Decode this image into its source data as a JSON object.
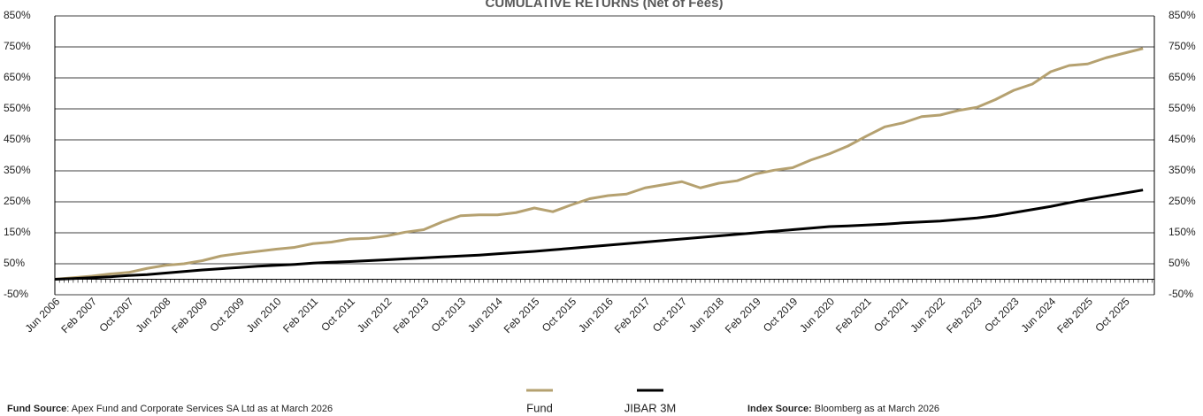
{
  "chart_data": {
    "type": "line",
    "title": "CUMULATIVE RETURNS (Net of Fees)",
    "categories": [
      "Jun 2006",
      null,
      "Feb 2007",
      null,
      "Oct 2007",
      null,
      "Jun 2008",
      null,
      "Feb 2009",
      null,
      "Oct 2009",
      null,
      "Jun 2010",
      null,
      "Feb 2011",
      null,
      "Oct 2011",
      null,
      "Jun 2012",
      null,
      "Feb 2013",
      null,
      "Oct 2013",
      null,
      "Jun 2014",
      null,
      "Feb 2015",
      null,
      "Oct 2015",
      null,
      "Jun 2016",
      null,
      "Feb 2017",
      null,
      "Oct 2017",
      null,
      "Jun 2018",
      null,
      "Feb 2019",
      null,
      "Oct 2019",
      null,
      "Jun 2020",
      null,
      "Feb 2021",
      null,
      "Oct 2021",
      null,
      "Jun 2022",
      null,
      "Feb 2023",
      null,
      "Oct 2023",
      null,
      "Jun 2024",
      null,
      "Feb 2025",
      null,
      "Oct 2025",
      null
    ],
    "series": [
      {
        "name": "Fund",
        "color": "#b5a170",
        "values": [
          0,
          5,
          10,
          17,
          22,
          35,
          45,
          50,
          60,
          75,
          83,
          90,
          97,
          103,
          115,
          120,
          130,
          132,
          140,
          152,
          160,
          185,
          205,
          208,
          208,
          215,
          230,
          218,
          240,
          260,
          270,
          275,
          295,
          305,
          315,
          295,
          310,
          318,
          340,
          352,
          360,
          385,
          405,
          430,
          462,
          492,
          505,
          525,
          530,
          545,
          555,
          580,
          610,
          630,
          670,
          690,
          695,
          715,
          730,
          745
        ]
      },
      {
        "name": "JIBAR 3M",
        "color": "#000000",
        "values": [
          0,
          2,
          5,
          8,
          12,
          15,
          20,
          25,
          30,
          34,
          38,
          42,
          45,
          48,
          52,
          55,
          57,
          60,
          63,
          66,
          69,
          72,
          75,
          78,
          82,
          86,
          90,
          95,
          100,
          105,
          110,
          115,
          120,
          125,
          130,
          135,
          140,
          145,
          150,
          155,
          160,
          165,
          170,
          172,
          175,
          178,
          182,
          185,
          188,
          193,
          198,
          205,
          215,
          225,
          235,
          247,
          258,
          268,
          278,
          288
        ]
      }
    ],
    "ylim": [
      -50,
      850
    ],
    "yticks": [
      {
        "value": -50,
        "label": "-50%"
      },
      {
        "value": 50,
        "label": "50%"
      },
      {
        "value": 150,
        "label": "150%"
      },
      {
        "value": 250,
        "label": "250%"
      },
      {
        "value": 350,
        "label": "350%"
      },
      {
        "value": 450,
        "label": "450%"
      },
      {
        "value": 550,
        "label": "550%"
      },
      {
        "value": 650,
        "label": "650%"
      },
      {
        "value": 750,
        "label": "750%"
      },
      {
        "value": 850,
        "label": "850%"
      }
    ],
    "y2lim": [
      -50,
      850
    ],
    "y2ticks": [
      {
        "value": -50,
        "label": "-50%"
      },
      {
        "value": 50,
        "label": "50%"
      },
      {
        "value": 150,
        "label": "150%"
      },
      {
        "value": 250,
        "label": "250%"
      },
      {
        "value": 350,
        "label": "350%"
      },
      {
        "value": 450,
        "label": "450%"
      },
      {
        "value": 550,
        "label": "550%"
      },
      {
        "value": 650,
        "label": "650%"
      },
      {
        "value": 750,
        "label": "750%"
      },
      {
        "value": 850,
        "label": "850%"
      }
    ],
    "grid": true,
    "legend": "bottom",
    "notes": [
      {
        "label": "Fund Source",
        "text": ": Apex Fund and Corporate Services SA Ltd as at March 2026"
      },
      {
        "label": "Index Source:",
        "text": " Bloomberg as at March 2026"
      }
    ]
  }
}
